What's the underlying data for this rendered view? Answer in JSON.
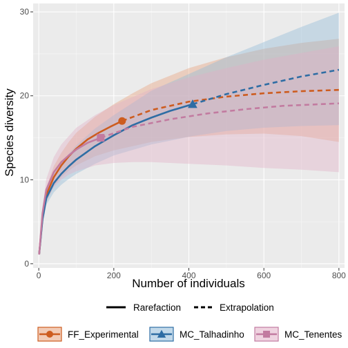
{
  "chart_data": {
    "type": "line",
    "xlabel": "Number of individuals",
    "ylabel": "Species diversity",
    "xlim": [
      -15,
      815
    ],
    "ylim": [
      -0.5,
      31
    ],
    "x_ticks": [
      0,
      200,
      400,
      600,
      800
    ],
    "y_ticks": [
      0,
      10,
      20,
      30
    ],
    "grid": true,
    "legend_position": "bottom",
    "method_legend": [
      "Rarefaction",
      "Extrapolation"
    ],
    "series": [
      {
        "name": "FF_Experimental",
        "color": "#CD5C1F",
        "fill": "#E8A07A",
        "marker": "circle",
        "observed": {
          "x": 222,
          "y": 17
        },
        "rarefaction": [
          [
            1,
            1.1
          ],
          [
            10,
            5.5
          ],
          [
            20,
            8.2
          ],
          [
            40,
            10.3
          ],
          [
            60,
            11.7
          ],
          [
            80,
            12.8
          ],
          [
            100,
            13.7
          ],
          [
            130,
            14.8
          ],
          [
            160,
            15.6
          ],
          [
            190,
            16.3
          ],
          [
            222,
            17
          ]
        ],
        "extrapolation": [
          [
            222,
            17
          ],
          [
            300,
            18.3
          ],
          [
            400,
            19.3
          ],
          [
            500,
            19.9
          ],
          [
            600,
            20.3
          ],
          [
            700,
            20.55
          ],
          [
            800,
            20.7
          ]
        ],
        "lower": [
          [
            1,
            1.1
          ],
          [
            10,
            4.8
          ],
          [
            20,
            7.3
          ],
          [
            40,
            9.2
          ],
          [
            60,
            10.3
          ],
          [
            80,
            11.1
          ],
          [
            100,
            11.7
          ],
          [
            150,
            12.8
          ],
          [
            200,
            13.5
          ],
          [
            250,
            14
          ],
          [
            300,
            14.5
          ],
          [
            400,
            15.1
          ],
          [
            500,
            15.4
          ],
          [
            600,
            15.5
          ],
          [
            700,
            15.2
          ],
          [
            800,
            14.5
          ]
        ],
        "upper": [
          [
            1,
            1.1
          ],
          [
            10,
            6.2
          ],
          [
            20,
            9.1
          ],
          [
            40,
            11.6
          ],
          [
            60,
            13.2
          ],
          [
            80,
            14.5
          ],
          [
            100,
            15.6
          ],
          [
            150,
            17.5
          ],
          [
            200,
            19
          ],
          [
            250,
            20.3
          ],
          [
            300,
            21.5
          ],
          [
            400,
            23.3
          ],
          [
            500,
            24.6
          ],
          [
            600,
            25.6
          ],
          [
            700,
            26.3
          ],
          [
            800,
            26.8
          ]
        ]
      },
      {
        "name": "MC_Talhadinho",
        "color": "#2E6DA4",
        "fill": "#8FB9D8",
        "marker": "triangle",
        "observed": {
          "x": 410,
          "y": 19
        },
        "rarefaction": [
          [
            1,
            1.1
          ],
          [
            10,
            5.3
          ],
          [
            20,
            7.8
          ],
          [
            40,
            9.6
          ],
          [
            60,
            10.7
          ],
          [
            80,
            11.6
          ],
          [
            100,
            12.4
          ],
          [
            150,
            14
          ],
          [
            200,
            15.3
          ],
          [
            250,
            16.5
          ],
          [
            300,
            17.4
          ],
          [
            350,
            18.2
          ],
          [
            410,
            19
          ]
        ],
        "extrapolation": [
          [
            410,
            19
          ],
          [
            500,
            20.2
          ],
          [
            600,
            21.3
          ],
          [
            700,
            22.3
          ],
          [
            800,
            23.1
          ]
        ],
        "lower": [
          [
            1,
            1.1
          ],
          [
            10,
            4.6
          ],
          [
            20,
            7
          ],
          [
            40,
            8.5
          ],
          [
            60,
            9.4
          ],
          [
            80,
            10.1
          ],
          [
            100,
            10.7
          ],
          [
            150,
            11.9
          ],
          [
            200,
            12.9
          ],
          [
            300,
            14.2
          ],
          [
            410,
            15.2
          ],
          [
            500,
            15.8
          ],
          [
            600,
            16.2
          ],
          [
            700,
            16.4
          ],
          [
            800,
            16.5
          ]
        ],
        "upper": [
          [
            1,
            1.1
          ],
          [
            10,
            6
          ],
          [
            20,
            8.6
          ],
          [
            40,
            10.7
          ],
          [
            60,
            12
          ],
          [
            80,
            13.1
          ],
          [
            100,
            14.1
          ],
          [
            150,
            16.1
          ],
          [
            200,
            17.7
          ],
          [
            300,
            20.6
          ],
          [
            410,
            22.8
          ],
          [
            500,
            24.6
          ],
          [
            600,
            26.4
          ],
          [
            700,
            28.2
          ],
          [
            800,
            29.9
          ]
        ]
      },
      {
        "name": "MC_Tenentes",
        "color": "#C27BA0",
        "fill": "#E2AFC6",
        "marker": "square",
        "observed": {
          "x": 165,
          "y": 15
        },
        "rarefaction": [
          [
            1,
            1.1
          ],
          [
            10,
            6
          ],
          [
            20,
            8.8
          ],
          [
            40,
            10.9
          ],
          [
            60,
            12.1
          ],
          [
            80,
            12.9
          ],
          [
            100,
            13.6
          ],
          [
            130,
            14.4
          ],
          [
            165,
            15
          ]
        ],
        "extrapolation": [
          [
            165,
            15
          ],
          [
            250,
            16.3
          ],
          [
            350,
            17.2
          ],
          [
            450,
            17.9
          ],
          [
            550,
            18.4
          ],
          [
            650,
            18.8
          ],
          [
            800,
            19.1
          ]
        ],
        "lower": [
          [
            1,
            1.1
          ],
          [
            10,
            5.2
          ],
          [
            20,
            7.5
          ],
          [
            40,
            9.1
          ],
          [
            60,
            10
          ],
          [
            80,
            10.6
          ],
          [
            100,
            11
          ],
          [
            150,
            11.7
          ],
          [
            200,
            12
          ],
          [
            250,
            12.1
          ],
          [
            300,
            12.1
          ],
          [
            400,
            11.9
          ],
          [
            500,
            11.7
          ],
          [
            600,
            11.4
          ],
          [
            700,
            11.2
          ],
          [
            800,
            10.9
          ]
        ],
        "upper": [
          [
            1,
            1.1
          ],
          [
            10,
            6.8
          ],
          [
            20,
            10.1
          ],
          [
            40,
            12.7
          ],
          [
            60,
            14.2
          ],
          [
            80,
            15.2
          ],
          [
            100,
            16.2
          ],
          [
            150,
            17.7
          ],
          [
            200,
            18.9
          ],
          [
            300,
            20.8
          ],
          [
            400,
            22.2
          ],
          [
            500,
            23.3
          ],
          [
            600,
            24.3
          ],
          [
            700,
            25.1
          ],
          [
            800,
            25.9
          ]
        ]
      }
    ]
  }
}
